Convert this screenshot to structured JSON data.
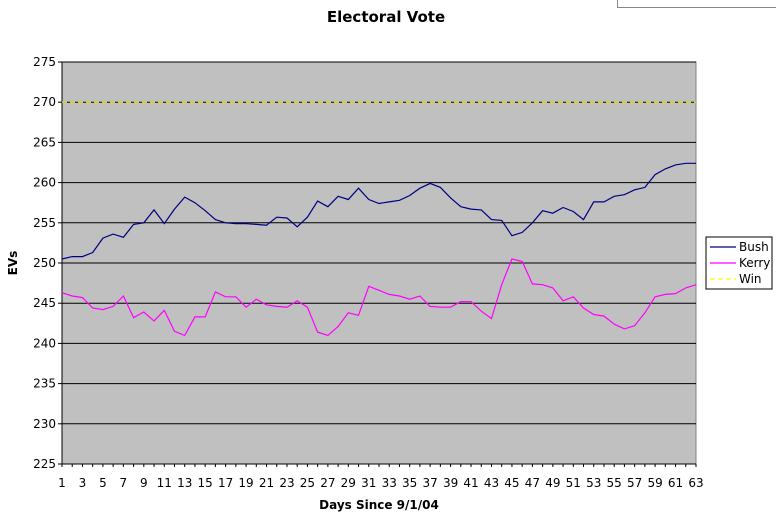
{
  "chart_data": {
    "type": "line",
    "title": "Electoral Vote",
    "xlabel": "Days Since 9/1/04",
    "ylabel": "EVs",
    "xlim": [
      1,
      63
    ],
    "ylim": [
      225,
      275
    ],
    "x_ticks": [
      1,
      3,
      5,
      7,
      9,
      11,
      13,
      15,
      17,
      19,
      21,
      23,
      25,
      27,
      29,
      31,
      33,
      35,
      37,
      39,
      41,
      43,
      45,
      47,
      49,
      51,
      53,
      55,
      57,
      59,
      61,
      63
    ],
    "y_ticks": [
      225,
      230,
      235,
      240,
      245,
      250,
      255,
      260,
      265,
      270,
      275
    ],
    "grid": true,
    "legend": "right",
    "plot_background": "#c0c0c0",
    "series": [
      {
        "name": "Bush",
        "color": "#000080",
        "x": [
          1,
          2,
          3,
          4,
          5,
          6,
          7,
          8,
          9,
          10,
          11,
          12,
          13,
          14,
          15,
          16,
          17,
          18,
          19,
          20,
          21,
          22,
          23,
          24,
          25,
          26,
          27,
          28,
          29,
          30,
          31,
          32,
          33,
          34,
          35,
          36,
          37,
          38,
          39,
          40,
          41,
          42,
          43,
          44,
          45,
          46,
          47,
          48,
          49,
          50,
          51,
          52,
          53,
          54,
          55,
          56,
          57,
          58,
          59,
          60,
          61,
          62,
          63
        ],
        "values": [
          250.5,
          250.8,
          250.8,
          251.3,
          253.1,
          253.6,
          253.2,
          254.8,
          255.0,
          256.6,
          254.9,
          256.7,
          258.2,
          257.5,
          256.5,
          255.4,
          255.0,
          254.9,
          254.9,
          254.8,
          254.7,
          255.7,
          255.6,
          254.5,
          255.7,
          257.7,
          257.0,
          258.3,
          257.9,
          259.3,
          257.9,
          257.4,
          257.6,
          257.8,
          258.4,
          259.3,
          259.9,
          259.4,
          258.1,
          257.0,
          256.7,
          256.6,
          255.4,
          255.3,
          253.4,
          253.8,
          255.0,
          256.5,
          256.2,
          256.9,
          256.4,
          255.4,
          257.6,
          257.6,
          258.3,
          258.5,
          259.1,
          259.4,
          261.0,
          261.7,
          262.2,
          262.4,
          262.4
        ]
      },
      {
        "name": "Kerry",
        "color": "#ff00ff",
        "x": [
          1,
          2,
          3,
          4,
          5,
          6,
          7,
          8,
          9,
          10,
          11,
          12,
          13,
          14,
          15,
          16,
          17,
          18,
          19,
          20,
          21,
          22,
          23,
          24,
          25,
          26,
          27,
          28,
          29,
          30,
          31,
          32,
          33,
          34,
          35,
          36,
          37,
          38,
          39,
          40,
          41,
          42,
          43,
          44,
          45,
          46,
          47,
          48,
          49,
          50,
          51,
          52,
          53,
          54,
          55,
          56,
          57,
          58,
          59,
          60,
          61,
          62,
          63
        ],
        "values": [
          246.3,
          245.9,
          245.7,
          244.4,
          244.2,
          244.6,
          245.9,
          243.2,
          243.9,
          242.8,
          244.1,
          241.5,
          241.0,
          243.3,
          243.3,
          246.4,
          245.8,
          245.8,
          244.5,
          245.5,
          244.8,
          244.6,
          244.5,
          245.3,
          244.5,
          241.4,
          241.0,
          242.1,
          243.8,
          243.5,
          247.1,
          246.6,
          246.1,
          245.9,
          245.5,
          245.9,
          244.6,
          244.5,
          244.5,
          245.2,
          245.2,
          244.0,
          243.1,
          247.3,
          250.5,
          250.2,
          247.4,
          247.3,
          246.9,
          245.3,
          245.8,
          244.4,
          243.6,
          243.4,
          242.4,
          241.8,
          242.2,
          243.8,
          245.8,
          246.1,
          246.2,
          246.9,
          247.3
        ]
      },
      {
        "name": "Win",
        "color": "#ffff00",
        "dashed": true,
        "x": [
          1,
          63
        ],
        "values": [
          270,
          270
        ]
      }
    ]
  }
}
